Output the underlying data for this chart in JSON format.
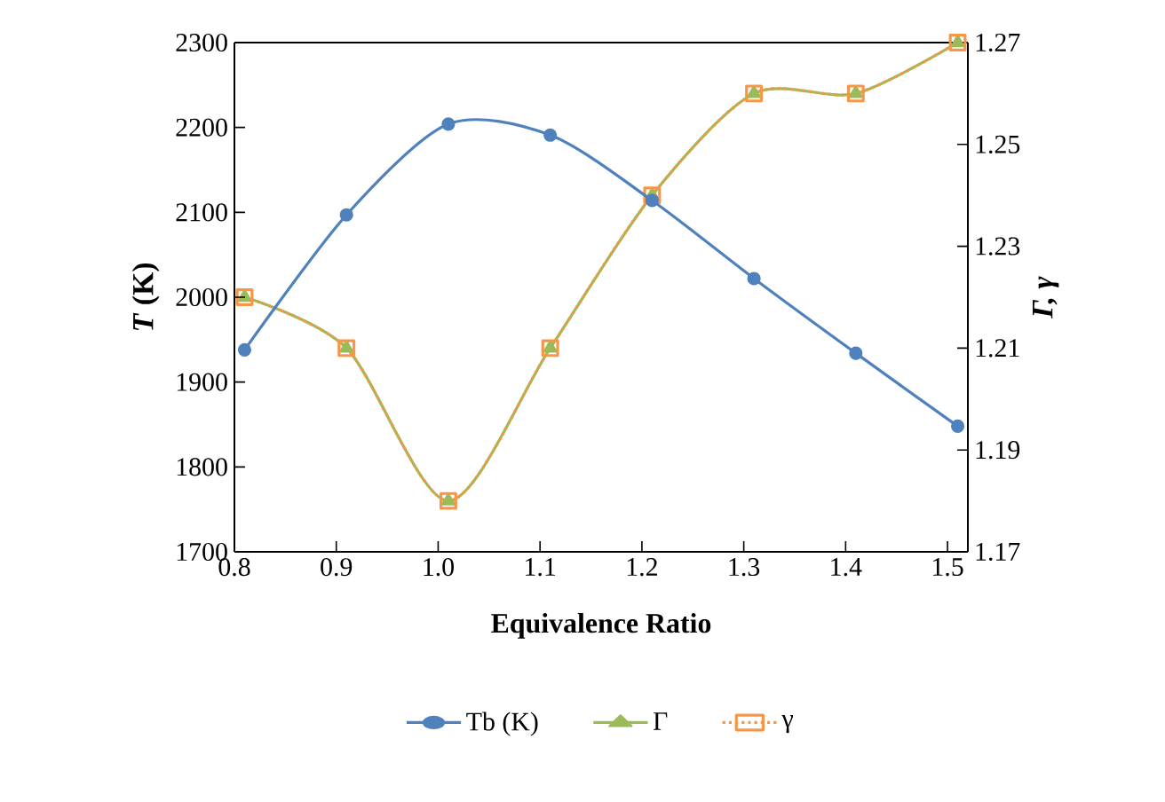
{
  "chart_data": {
    "type": "line",
    "xlabel": "Equivalence Ratio",
    "ylabel": "*T* (K)",
    "y2label": "Γ, γ",
    "x": [
      0.81,
      0.91,
      1.01,
      1.11,
      1.21,
      1.31,
      1.41,
      1.51
    ],
    "xlim": [
      0.8,
      1.52
    ],
    "xticks": [
      0.8,
      0.9,
      {
        "value": 1,
        "label": "1.0"
      },
      1.1,
      1.2,
      1.3,
      1.4,
      1.5
    ],
    "ylim": [
      1700,
      2300
    ],
    "yticks": [
      1700,
      1800,
      1900,
      2000,
      2100,
      2200,
      2300
    ],
    "y2lim": [
      1.17,
      1.27
    ],
    "y2ticks": [
      1.17,
      1.19,
      1.21,
      1.23,
      1.25,
      1.27
    ],
    "legend": "bottom",
    "grid": false,
    "series": [
      {
        "name": "Tb (K)",
        "color": "#4f81bd",
        "marker": "circle",
        "line_style": "solid",
        "values": [
          1938,
          2097,
          2204,
          2191,
          2114,
          2022,
          1934,
          1848
        ]
      },
      {
        "name": "Γ",
        "color": "#9bbb59",
        "marker": "triangle",
        "line_style": "solid",
        "axis": "y2",
        "values": [
          1.22,
          1.21,
          1.18,
          1.21,
          1.24,
          1.26,
          1.26,
          1.27
        ]
      },
      {
        "name": "γ",
        "color": "#f79646",
        "marker": "square",
        "line_style": "dotted",
        "axis": "y2",
        "values": [
          1.22,
          1.21,
          1.18,
          1.21,
          1.24,
          1.26,
          1.26,
          1.27
        ]
      }
    ]
  }
}
